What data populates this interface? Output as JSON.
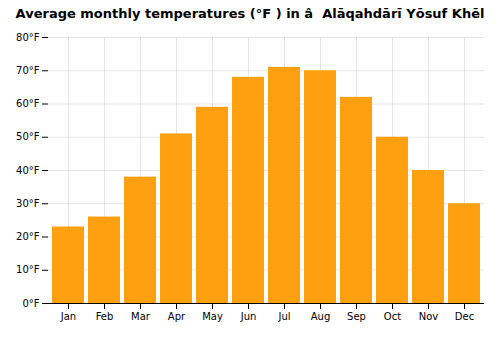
{
  "chart_data": {
    "type": "bar",
    "title": "Average monthly temperatures (°F ) in â  Alāqahdārī Yōsuf Khēl",
    "categories": [
      "Jan",
      "Feb",
      "Mar",
      "Apr",
      "May",
      "Jun",
      "Jul",
      "Aug",
      "Sep",
      "Oct",
      "Nov",
      "Dec"
    ],
    "values": [
      23,
      26,
      38,
      51,
      59,
      68,
      71,
      70,
      62,
      50,
      40,
      30
    ],
    "color": "#FFA010",
    "ylim": [
      0,
      80
    ],
    "yticks": [
      {
        "value": 0,
        "label": "0°F"
      },
      {
        "value": 10,
        "label": "10°F"
      },
      {
        "value": 20,
        "label": "20°F"
      },
      {
        "value": 30,
        "label": "30°F"
      },
      {
        "value": 40,
        "label": "40°F"
      },
      {
        "value": 50,
        "label": "50°F"
      },
      {
        "value": 60,
        "label": "60°F"
      },
      {
        "value": 70,
        "label": "70°F"
      },
      {
        "value": 80,
        "label": "80°F"
      }
    ],
    "grid": true
  }
}
